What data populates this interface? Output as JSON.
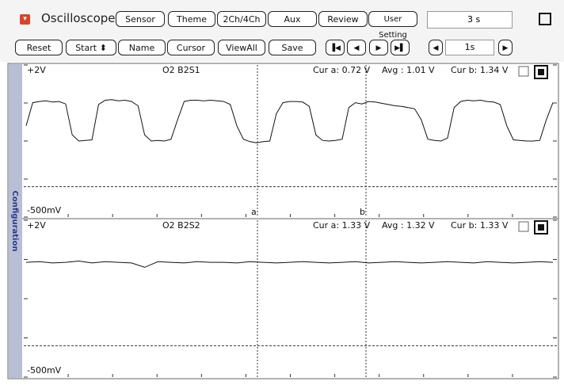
{
  "toolbar": {
    "title": "Oscilloscope",
    "row1": [
      "Sensor",
      "Theme",
      "2Ch/4Ch",
      "Aux",
      "Review",
      "User Setting"
    ],
    "time": "3 s",
    "row2": [
      "Reset",
      "Start ⬍",
      "Name",
      "Cursor",
      "ViewAll",
      "Save"
    ],
    "step": "1s"
  },
  "side_tab": "Configuration",
  "cursors": [
    "a",
    "b"
  ],
  "panels": [
    {
      "top_label": "+2V",
      "name": "O2 B2S1",
      "cur_a": "Cur a: 0.72 V",
      "avg": "Avg  : 1.01 V",
      "cur_b": "Cur b: 1.34 V",
      "bottom_label": "-500mV",
      "ylim": [
        -0.5,
        2
      ],
      "trace": [
        1.0,
        1.38,
        1.4,
        1.41,
        1.39,
        1.4,
        1.36,
        0.85,
        0.75,
        0.76,
        0.77,
        1.35,
        1.42,
        1.43,
        1.41,
        1.42,
        1.4,
        1.33,
        0.85,
        0.75,
        0.76,
        0.75,
        0.78,
        1.1,
        1.4,
        1.42,
        1.42,
        1.41,
        1.42,
        1.41,
        1.4,
        1.35,
        1.0,
        0.78,
        0.74,
        0.72,
        0.74,
        0.75,
        1.2,
        1.38,
        1.4,
        1.4,
        1.39,
        1.32,
        0.85,
        0.76,
        0.75,
        0.76,
        0.78,
        1.3,
        1.38,
        1.36,
        1.4,
        1.39,
        1.37,
        1.35,
        1.33,
        1.32,
        1.3,
        1.28,
        1.1,
        0.78,
        0.76,
        0.75,
        0.8,
        1.3,
        1.4,
        1.42,
        1.41,
        1.42,
        1.4,
        1.39,
        1.35,
        1.0,
        0.77,
        0.76,
        0.75,
        0.75,
        0.76,
        1.1,
        1.38
      ]
    },
    {
      "top_label": "+2V",
      "name": "O2 B2S2",
      "cur_a": "Cur a: 1.33 V",
      "avg": "Avg  : 1.32 V",
      "cur_b": "Cur b: 1.33 V",
      "bottom_label": "-500mV",
      "ylim": [
        -0.5,
        2
      ],
      "trace": [
        1.33,
        1.34,
        1.32,
        1.33,
        1.35,
        1.32,
        1.34,
        1.33,
        1.32,
        1.25,
        1.34,
        1.33,
        1.32,
        1.34,
        1.33,
        1.33,
        1.32,
        1.34,
        1.33,
        1.32,
        1.33,
        1.34,
        1.33,
        1.32,
        1.33,
        1.34,
        1.32,
        1.33,
        1.34,
        1.33,
        1.32,
        1.33,
        1.34,
        1.33,
        1.32,
        1.34,
        1.33,
        1.32,
        1.33,
        1.34,
        1.33
      ]
    }
  ]
}
